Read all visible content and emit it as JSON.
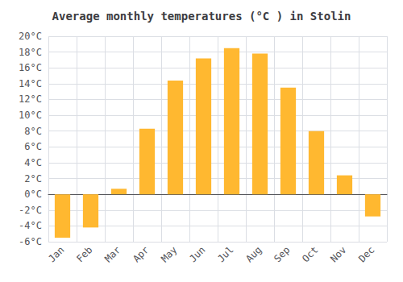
{
  "chart_data": {
    "type": "bar",
    "title": "Average monthly temperatures (°C ) in Stolin",
    "categories": [
      "Jan",
      "Feb",
      "Mar",
      "Apr",
      "May",
      "Jun",
      "Jul",
      "Aug",
      "Sep",
      "Oct",
      "Nov",
      "Dec"
    ],
    "values": [
      -5.5,
      -4.2,
      0.7,
      8.3,
      14.4,
      17.2,
      18.5,
      17.8,
      13.5,
      8.0,
      2.4,
      -2.8
    ],
    "color": "#FFB830",
    "ylim": [
      -6,
      20
    ],
    "yticks": [
      {
        "value": -6,
        "label": "-6°C"
      },
      {
        "value": -4,
        "label": "-4°C"
      },
      {
        "value": -2,
        "label": "-2°C"
      },
      {
        "value": 0,
        "label": "0°C"
      },
      {
        "value": 2,
        "label": "2°C"
      },
      {
        "value": 4,
        "label": "4°C"
      },
      {
        "value": 6,
        "label": "6°C"
      },
      {
        "value": 8,
        "label": "8°C"
      },
      {
        "value": 10,
        "label": "10°C"
      },
      {
        "value": 12,
        "label": "12°C"
      },
      {
        "value": 14,
        "label": "14°C"
      },
      {
        "value": 16,
        "label": "16°C"
      },
      {
        "value": 18,
        "label": "18°C"
      },
      {
        "value": 20,
        "label": "20°C"
      }
    ],
    "grid": true
  }
}
